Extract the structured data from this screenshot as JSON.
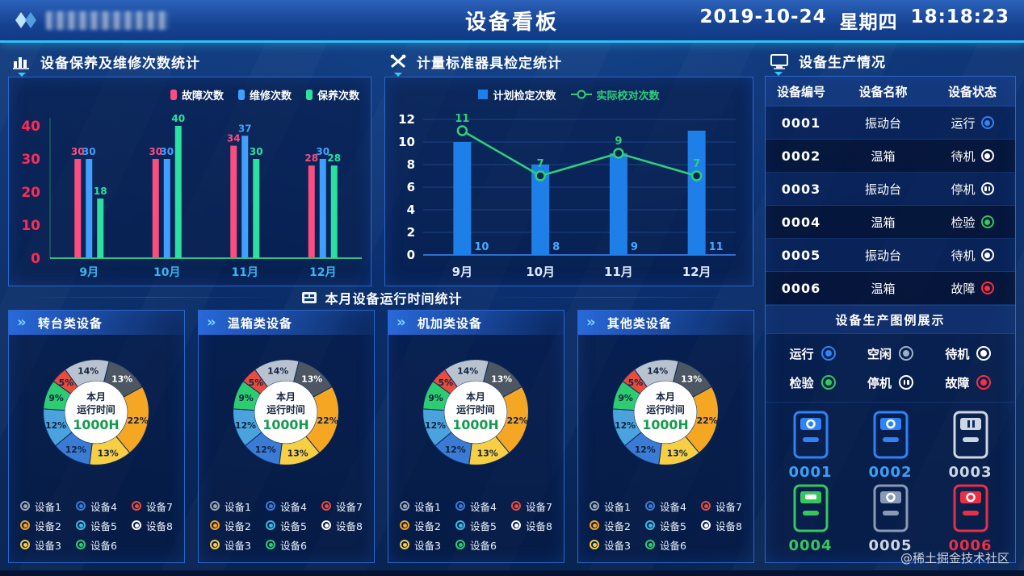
{
  "header": {
    "title": "设备看板",
    "date": "2019-10-24",
    "weekday": "星期四",
    "time": "18:18:23"
  },
  "sections": {
    "maintenance": {
      "title": "设备保养及维修次数统计"
    },
    "metrology": {
      "title": "计量标准器具检定统计"
    },
    "production_title": {
      "title": "设备生产情况"
    },
    "runtime_banner": {
      "title": "本月设备运行时间统计"
    }
  },
  "chart_data": [
    {
      "id": "maintenance_chart",
      "type": "bar",
      "title": "设备保养及维修次数统计",
      "categories": [
        "9月",
        "10月",
        "11月",
        "12月"
      ],
      "series": [
        {
          "name": "故障次数",
          "color": "#fb4d80",
          "values": [
            30,
            30,
            34,
            28
          ]
        },
        {
          "name": "维修次数",
          "color": "#41a0ff",
          "values": [
            30,
            30,
            37,
            30
          ]
        },
        {
          "name": "保养次数",
          "color": "#2be0a0",
          "values": [
            18,
            40,
            30,
            28
          ]
        }
      ],
      "ylim": [
        0,
        40
      ],
      "yticks": [
        0,
        10,
        20,
        30,
        40
      ],
      "ytick_color": "#ff2a55",
      "xtick_color": "#38b6f0",
      "legend_position": "top-right",
      "grid": false
    },
    {
      "id": "metrology_chart",
      "type": "bar+line",
      "title": "计量标准器具检定统计",
      "categories": [
        "9月",
        "10月",
        "11月",
        "12月"
      ],
      "series": [
        {
          "name": "计划检定次数",
          "type": "bar",
          "color": "#1f7fe8",
          "values": [
            10,
            8,
            9,
            11
          ],
          "label_color": "#49a8ff"
        },
        {
          "name": "实际校对次数",
          "type": "line",
          "color": "#2fd07a",
          "values": [
            11,
            7,
            9,
            7
          ],
          "label_color": "#2fd07a"
        }
      ],
      "ylim": [
        0,
        12
      ],
      "yticks": [
        0,
        2,
        4,
        6,
        8,
        10,
        12
      ],
      "legend_position": "top-center",
      "grid": true
    },
    {
      "id": "runtime_donut",
      "type": "pie",
      "title": "本月设备运行时间统计",
      "center_label": {
        "line1": "本月",
        "line2": "运行时间",
        "value": "1000H",
        "value_color": "#169a4e"
      },
      "unit": "%",
      "start_angle": -36,
      "slices": [
        {
          "value": 14,
          "color": "#b9c2cf",
          "label_color": "#14233f"
        },
        {
          "value": 13,
          "color": "#4d5663",
          "label_color": "#ffffff"
        },
        {
          "value": 22,
          "color": "#f5a623",
          "label_color": "#14233f"
        },
        {
          "value": 13,
          "color": "#f7cf45",
          "label_color": "#14233f"
        },
        {
          "value": 12,
          "color": "#3a7bd5",
          "label_color": "#14233f"
        },
        {
          "value": 12,
          "color": "#4aa3dd",
          "label_color": "#14233f"
        },
        {
          "value": 9,
          "color": "#2ecc71",
          "label_color": "#14233f"
        },
        {
          "value": 5,
          "color": "#e74c3c",
          "label_color": "#14233f"
        }
      ]
    }
  ],
  "runtime_panels": [
    {
      "title": "转台类设备"
    },
    {
      "title": "温箱类设备"
    },
    {
      "title": "机加类设备"
    },
    {
      "title": "其他类设备"
    }
  ],
  "device_legend": [
    {
      "label": "设备1",
      "color": "#9aa5b1"
    },
    {
      "label": "设备2",
      "color": "#f5a623"
    },
    {
      "label": "设备3",
      "color": "#f7cf45"
    },
    {
      "label": "设备4",
      "color": "#3a7bd5"
    },
    {
      "label": "设备5",
      "color": "#41b8e4"
    },
    {
      "label": "设备6",
      "color": "#2ecc71"
    },
    {
      "label": "设备7",
      "color": "#e74c3c"
    },
    {
      "label": "设备8",
      "color": "#ffffff"
    }
  ],
  "production": {
    "table": {
      "headers": [
        "设备编号",
        "设备名称",
        "设备状态"
      ],
      "rows": [
        {
          "id": "0001",
          "name": "振动台",
          "status": "运行",
          "status_key": "running"
        },
        {
          "id": "0002",
          "name": "温箱",
          "status": "待机",
          "status_key": "standby"
        },
        {
          "id": "0003",
          "name": "振动台",
          "status": "停机",
          "status_key": "stopped"
        },
        {
          "id": "0004",
          "name": "温箱",
          "status": "检验",
          "status_key": "inspect"
        },
        {
          "id": "0005",
          "name": "振动台",
          "status": "待机",
          "status_key": "standby"
        },
        {
          "id": "0006",
          "name": "温箱",
          "status": "故障",
          "status_key": "fault"
        }
      ]
    },
    "legend_title": "设备生产图例展示",
    "status_legend": [
      {
        "label": "运行",
        "key": "running",
        "color": "#2f83f6"
      },
      {
        "label": "空闲",
        "key": "idle",
        "color": "#9fb0c8"
      },
      {
        "label": "待机",
        "key": "standby",
        "color": "#ffffff"
      },
      {
        "label": "检验",
        "key": "inspect",
        "color": "#36c75f"
      },
      {
        "label": "停机",
        "key": "stopped",
        "color": "#ffffff"
      },
      {
        "label": "故障",
        "key": "fault",
        "color": "#ff2d3e"
      }
    ],
    "machines": [
      {
        "id": "0001",
        "color": "#2f83f6",
        "label_color": "#3f9ff5",
        "symbol": "circle"
      },
      {
        "id": "0002",
        "color": "#2f83f6",
        "label_color": "#3f9ff5",
        "symbol": "circle"
      },
      {
        "id": "0003",
        "color": "#cdd6e4",
        "label_color": "#cdd6e4",
        "symbol": "pause",
        "dark_symbol": true
      },
      {
        "id": "0004",
        "color": "#36c75f",
        "label_color": "#36c75f",
        "symbol": "slot"
      },
      {
        "id": "0005",
        "color": "#8a99b5",
        "label_color": "#cdd6e4",
        "symbol": "circle"
      },
      {
        "id": "0006",
        "color": "#ea2f45",
        "label_color": "#ea2f45",
        "symbol": "circle"
      }
    ]
  },
  "watermark": "@稀土掘金技术社区"
}
